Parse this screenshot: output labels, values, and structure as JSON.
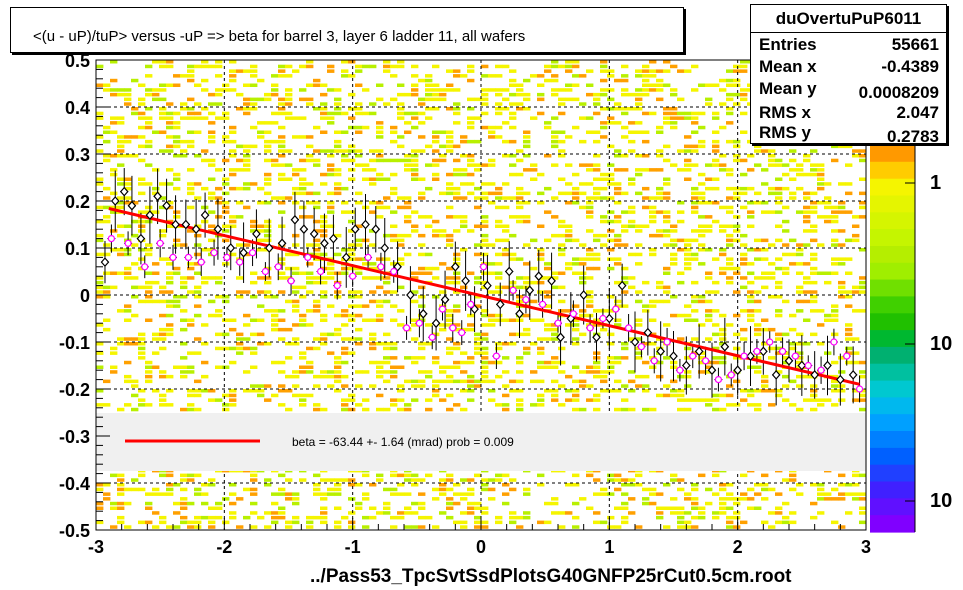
{
  "title": "<(u - uP)/tuP> versus  -uP => beta for barrel 3, layer 6 ladder 11, all wafers",
  "stats": {
    "name": "duOvertuPuP6011",
    "rows": [
      {
        "label": "Entries",
        "value": "55661"
      },
      {
        "label": "Mean x",
        "value": "-0.4389"
      },
      {
        "label": "Mean y",
        "value": "0.0008209"
      },
      {
        "label": "RMS x",
        "value": "2.047"
      },
      {
        "label": "RMS y",
        "value": "0.2783"
      }
    ]
  },
  "legend": {
    "text": "beta =  -63.44 +-  1.64 (mrad) prob = 0.009",
    "line_color": "#ff0000"
  },
  "file_label": "../Pass53_TpcSvtSsdPlotsG40GNFP25rCut0.5cm.root",
  "colors": {
    "heat_yellow": "#f5f500",
    "heat_orange": "#ffa000",
    "heat_green": "#b8f000",
    "fit_line": "#ff0000",
    "black_markers": "#000000",
    "magenta_markers": "#ff00ff",
    "legend_band": "#f0f0f0"
  },
  "palette_labels": [
    "1",
    "10",
    "10"
  ],
  "chart_data": {
    "type": "scatter",
    "xlim": [
      -3,
      3
    ],
    "ylim": [
      -0.5,
      0.5
    ],
    "x_ticks": [
      "-3",
      "-2",
      "-1",
      "0",
      "1",
      "2",
      "3"
    ],
    "y_ticks": [
      "-0.5",
      "-0.4",
      "-0.3",
      "-0.2",
      "-0.1",
      "0",
      "0.1",
      "0.2",
      "0.3",
      "0.4",
      "0.5"
    ],
    "grid": true,
    "fit_line": {
      "x": [
        -2.9,
        2.95
      ],
      "y": [
        0.184,
        -0.19
      ]
    },
    "series": [
      {
        "marker": "open-diamond",
        "color": "black",
        "x": [
          -2.93,
          -2.85,
          -2.78,
          -2.72,
          -2.65,
          -2.58,
          -2.52,
          -2.45,
          -2.38,
          -2.3,
          -2.22,
          -2.15,
          -2.05,
          -1.95,
          -1.85,
          -1.75,
          -1.65,
          -1.55,
          -1.45,
          -1.38,
          -1.3,
          -1.22,
          -1.15,
          -1.05,
          -0.98,
          -0.9,
          -0.82,
          -0.75,
          -0.65,
          -0.55,
          -0.45,
          -0.35,
          -0.28,
          -0.2,
          -0.12,
          -0.05,
          0.05,
          0.15,
          0.22,
          0.3,
          0.38,
          0.45,
          0.55,
          0.62,
          0.7,
          0.8,
          0.9,
          1.0,
          1.1,
          1.2,
          1.3,
          1.4,
          1.5,
          1.6,
          1.7,
          1.8,
          1.9,
          2.0,
          2.1,
          2.2,
          2.3,
          2.4,
          2.5,
          2.6,
          2.7,
          2.8,
          2.9
        ],
        "y": [
          0.07,
          0.2,
          0.22,
          0.19,
          0.12,
          0.17,
          0.21,
          0.19,
          0.15,
          0.15,
          0.14,
          0.17,
          0.14,
          0.1,
          0.09,
          0.13,
          0.1,
          0.11,
          0.16,
          0.14,
          0.13,
          0.11,
          0.12,
          0.08,
          0.14,
          0.15,
          0.14,
          0.1,
          0.06,
          0.0,
          -0.04,
          -0.06,
          -0.01,
          0.06,
          0.03,
          -0.03,
          0.02,
          -0.02,
          0.05,
          -0.04,
          0.01,
          0.04,
          0.03,
          -0.09,
          -0.05,
          0.0,
          -0.09,
          -0.05,
          0.02,
          -0.1,
          -0.08,
          -0.12,
          -0.13,
          -0.15,
          -0.12,
          -0.16,
          -0.11,
          -0.16,
          -0.13,
          -0.12,
          -0.17,
          -0.14,
          -0.15,
          -0.17,
          -0.15,
          -0.18,
          -0.17
        ]
      },
      {
        "marker": "open-circle",
        "color": "magenta",
        "x": [
          -2.88,
          -2.75,
          -2.62,
          -2.5,
          -2.4,
          -2.28,
          -2.18,
          -2.08,
          -1.98,
          -1.88,
          -1.78,
          -1.68,
          -1.58,
          -1.48,
          -1.35,
          -1.25,
          -1.12,
          -1.0,
          -0.88,
          -0.78,
          -0.68,
          -0.58,
          -0.48,
          -0.38,
          -0.3,
          -0.22,
          -0.15,
          -0.08,
          0.02,
          0.12,
          0.25,
          0.35,
          0.48,
          0.6,
          0.72,
          0.85,
          0.95,
          1.05,
          1.15,
          1.25,
          1.35,
          1.45,
          1.55,
          1.65,
          1.75,
          1.85,
          1.95,
          2.05,
          2.15,
          2.25,
          2.35,
          2.45,
          2.55,
          2.65,
          2.75,
          2.85,
          2.95
        ],
        "y": [
          0.12,
          0.11,
          0.06,
          0.11,
          0.08,
          0.08,
          0.07,
          0.09,
          0.08,
          0.07,
          0.09,
          0.05,
          0.06,
          0.03,
          0.08,
          0.05,
          0.02,
          0.04,
          0.08,
          0.06,
          0.05,
          -0.07,
          -0.06,
          -0.09,
          -0.03,
          -0.07,
          -0.08,
          -0.02,
          0.06,
          -0.13,
          0.01,
          -0.01,
          -0.02,
          -0.06,
          -0.04,
          -0.07,
          -0.05,
          -0.03,
          -0.07,
          -0.11,
          -0.14,
          -0.1,
          -0.16,
          -0.13,
          -0.14,
          -0.18,
          -0.17,
          -0.13,
          -0.12,
          -0.1,
          -0.12,
          -0.13,
          -0.15,
          -0.16,
          -0.1,
          -0.13,
          -0.2
        ]
      }
    ]
  }
}
